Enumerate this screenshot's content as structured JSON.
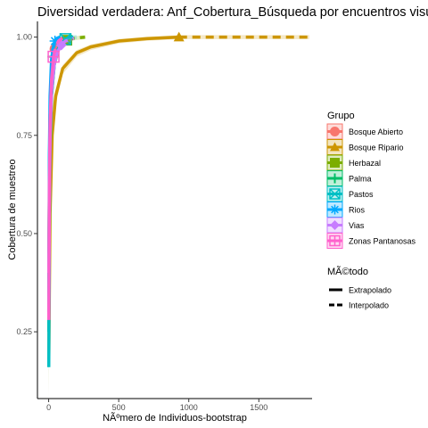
{
  "chart_data": {
    "type": "line",
    "title": "Diversidad verdadera: Anf_Cobertura_Búsqueda por encuentros visuales (VE",
    "xlabel": "NÃºmero de Individuos-bootstrap",
    "ylabel": "Cobertura de muestreo",
    "xlim": [
      -80,
      1880
    ],
    "ylim": [
      0.08,
      1.04
    ],
    "x_ticks": [
      0,
      500,
      1000,
      1500
    ],
    "x_tick_labels": [
      "0",
      "500",
      "1000",
      "1500"
    ],
    "y_ticks": [
      0.25,
      0.5,
      0.75,
      1.0
    ],
    "y_tick_labels": [
      "0.25",
      "0.50",
      "0.75",
      "1.00"
    ],
    "grid": false,
    "legend_position": "right",
    "legend_groups": {
      "title": "Grupo",
      "items": [
        {
          "label": "Bosque Abierto",
          "color": "#F8766D",
          "shape": "circle"
        },
        {
          "label": "Bosque Ripario",
          "color": "#CD9600",
          "shape": "triangle"
        },
        {
          "label": "Herbazal",
          "color": "#7CAE00",
          "shape": "square"
        },
        {
          "label": "Palma",
          "color": "#00BE67",
          "shape": "plus"
        },
        {
          "label": "Pastos",
          "color": "#00BFC4",
          "shape": "square-cross"
        },
        {
          "label": "Rios",
          "color": "#00A9FF",
          "shape": "asterisk"
        },
        {
          "label": "Vias",
          "color": "#C77CFF",
          "shape": "diamond"
        },
        {
          "label": "Zonas Pantanosas",
          "color": "#FF61CC",
          "shape": "square-plus"
        }
      ]
    },
    "legend_methods": {
      "title": "MÃ©todo",
      "items": [
        {
          "label": "Extrapolado",
          "dash": "solid"
        },
        {
          "label": "Interpolado",
          "dash": "dashed"
        }
      ]
    },
    "series": [
      {
        "group": "Bosque Abierto",
        "color": "#F8766D",
        "x": [
          1,
          10,
          20,
          30,
          45,
          60,
          80,
          100,
          140
        ],
        "y": [
          0.45,
          0.8,
          0.9,
          0.94,
          0.97,
          0.985,
          0.993,
          0.997,
          1.0
        ],
        "observed": 45
      },
      {
        "group": "Bosque Ripario",
        "color": "#CD9600",
        "x": [
          1,
          10,
          25,
          50,
          100,
          200,
          300,
          500,
          700,
          930,
          1200,
          1500,
          1860
        ],
        "y": [
          0.18,
          0.55,
          0.75,
          0.85,
          0.92,
          0.96,
          0.975,
          0.99,
          0.996,
          1.0,
          1.0,
          1.0,
          1.0
        ],
        "observed": 930
      },
      {
        "group": "Herbazal",
        "color": "#7CAE00",
        "x": [
          1,
          10,
          20,
          40,
          70,
          100,
          130,
          180,
          260
        ],
        "y": [
          0.35,
          0.72,
          0.85,
          0.93,
          0.97,
          0.985,
          0.992,
          0.997,
          1.0
        ],
        "observed": 130
      },
      {
        "group": "Palma",
        "color": "#00BE67",
        "x": [
          1,
          5,
          10,
          20,
          30,
          45,
          60,
          90
        ],
        "y": [
          0.25,
          0.65,
          0.8,
          0.9,
          0.95,
          0.975,
          0.99,
          1.0
        ],
        "observed": 30
      },
      {
        "group": "Pastos",
        "color": "#00BFC4",
        "x": [
          1,
          5,
          10,
          20,
          40,
          60,
          90,
          120,
          160,
          200
        ],
        "y": [
          0.16,
          0.55,
          0.72,
          0.85,
          0.93,
          0.965,
          0.985,
          0.995,
          1.0,
          1.0
        ],
        "observed": 120
      },
      {
        "group": "Rios",
        "color": "#00A9FF",
        "x": [
          1,
          5,
          10,
          20,
          30,
          45,
          60,
          80
        ],
        "y": [
          0.3,
          0.7,
          0.85,
          0.94,
          0.97,
          0.99,
          0.997,
          1.0
        ],
        "observed": 45
      },
      {
        "group": "Vias",
        "color": "#C77CFF",
        "x": [
          1,
          10,
          20,
          40,
          60,
          90,
          120,
          180
        ],
        "y": [
          0.4,
          0.75,
          0.86,
          0.93,
          0.96,
          0.98,
          0.99,
          0.997
        ],
        "observed": 90
      },
      {
        "group": "Zonas Pantanosas",
        "color": "#FF61CC",
        "x": [
          1,
          5,
          10,
          20,
          35,
          50,
          70,
          100
        ],
        "y": [
          0.28,
          0.62,
          0.78,
          0.89,
          0.95,
          0.975,
          0.99,
          0.998
        ],
        "observed": 35
      }
    ]
  }
}
